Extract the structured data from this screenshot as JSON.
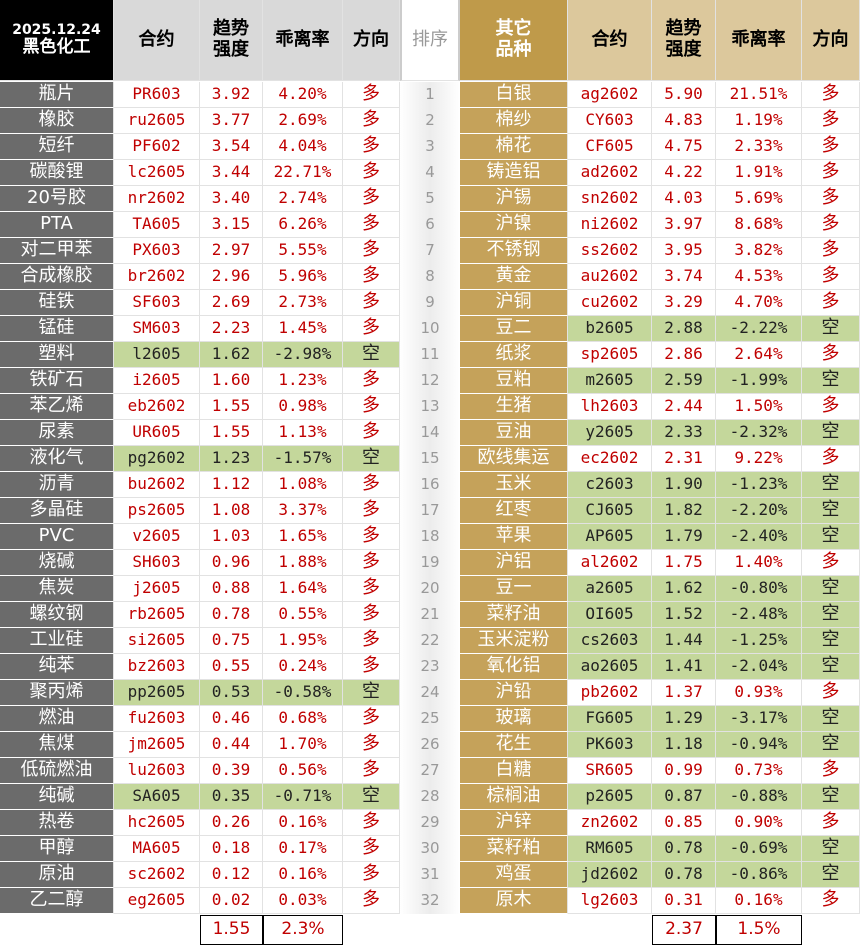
{
  "left": {
    "date": "2025.12.24",
    "title": "黑色化工",
    "columns": [
      [
        "合约"
      ],
      [
        "趋势",
        "强度"
      ],
      [
        "乖离率"
      ],
      [
        "方向"
      ]
    ],
    "rows": [
      [
        "瓶片",
        "PR603",
        "3.92",
        "4.20%",
        "多"
      ],
      [
        "橡胶",
        "ru2605",
        "3.77",
        "2.69%",
        "多"
      ],
      [
        "短纤",
        "PF602",
        "3.54",
        "4.04%",
        "多"
      ],
      [
        "碳酸锂",
        "lc2605",
        "3.44",
        "22.71%",
        "多"
      ],
      [
        "20号胶",
        "nr2602",
        "3.40",
        "2.74%",
        "多"
      ],
      [
        "PTA",
        "TA605",
        "3.15",
        "6.26%",
        "多"
      ],
      [
        "对二甲苯",
        "PX603",
        "2.97",
        "5.55%",
        "多"
      ],
      [
        "合成橡胶",
        "br2602",
        "2.96",
        "5.96%",
        "多"
      ],
      [
        "硅铁",
        "SF603",
        "2.69",
        "2.73%",
        "多"
      ],
      [
        "锰硅",
        "SM603",
        "2.23",
        "1.45%",
        "多"
      ],
      [
        "塑料",
        "l2605",
        "1.62",
        "-2.98%",
        "空"
      ],
      [
        "铁矿石",
        "i2605",
        "1.60",
        "1.23%",
        "多"
      ],
      [
        "苯乙烯",
        "eb2602",
        "1.55",
        "0.98%",
        "多"
      ],
      [
        "尿素",
        "UR605",
        "1.55",
        "1.13%",
        "多"
      ],
      [
        "液化气",
        "pg2602",
        "1.23",
        "-1.57%",
        "空"
      ],
      [
        "沥青",
        "bu2602",
        "1.12",
        "1.08%",
        "多"
      ],
      [
        "多晶硅",
        "ps2605",
        "1.08",
        "3.37%",
        "多"
      ],
      [
        "PVC",
        "v2605",
        "1.03",
        "1.65%",
        "多"
      ],
      [
        "烧碱",
        "SH603",
        "0.96",
        "1.88%",
        "多"
      ],
      [
        "焦炭",
        "j2605",
        "0.88",
        "1.64%",
        "多"
      ],
      [
        "螺纹钢",
        "rb2605",
        "0.78",
        "0.55%",
        "多"
      ],
      [
        "工业硅",
        "si2605",
        "0.75",
        "1.95%",
        "多"
      ],
      [
        "纯苯",
        "bz2603",
        "0.55",
        "0.24%",
        "多"
      ],
      [
        "聚丙烯",
        "pp2605",
        "0.53",
        "-0.58%",
        "空"
      ],
      [
        "燃油",
        "fu2603",
        "0.46",
        "0.68%",
        "多"
      ],
      [
        "焦煤",
        "jm2605",
        "0.44",
        "1.70%",
        "多"
      ],
      [
        "低硫燃油",
        "lu2603",
        "0.39",
        "0.56%",
        "多"
      ],
      [
        "纯碱",
        "SA605",
        "0.35",
        "-0.71%",
        "空"
      ],
      [
        "热卷",
        "hc2605",
        "0.26",
        "0.16%",
        "多"
      ],
      [
        "甲醇",
        "MA605",
        "0.18",
        "0.17%",
        "多"
      ],
      [
        "原油",
        "sc2602",
        "0.12",
        "0.16%",
        "多"
      ],
      [
        "乙二醇",
        "eg2605",
        "0.02",
        "0.03%",
        "多"
      ]
    ],
    "footer": [
      "1.55",
      "2.3%"
    ]
  },
  "rank": {
    "title": "排序",
    "values": [
      1,
      2,
      3,
      4,
      5,
      6,
      7,
      8,
      9,
      10,
      11,
      12,
      13,
      14,
      15,
      16,
      17,
      18,
      19,
      20,
      21,
      22,
      23,
      24,
      25,
      26,
      27,
      28,
      29,
      30,
      31,
      32
    ]
  },
  "right": {
    "title": [
      "其它",
      "品种"
    ],
    "columns": [
      [
        "合约"
      ],
      [
        "趋势",
        "强度"
      ],
      [
        "乖离率"
      ],
      [
        "方向"
      ]
    ],
    "rows": [
      [
        "白银",
        "ag2602",
        "5.90",
        "21.51%",
        "多"
      ],
      [
        "棉纱",
        "CY603",
        "4.83",
        "1.19%",
        "多"
      ],
      [
        "棉花",
        "CF605",
        "4.75",
        "2.33%",
        "多"
      ],
      [
        "铸造铝",
        "ad2602",
        "4.22",
        "1.91%",
        "多"
      ],
      [
        "沪锡",
        "sn2602",
        "4.03",
        "5.69%",
        "多"
      ],
      [
        "沪镍",
        "ni2602",
        "3.97",
        "8.68%",
        "多"
      ],
      [
        "不锈钢",
        "ss2602",
        "3.95",
        "3.82%",
        "多"
      ],
      [
        "黄金",
        "au2602",
        "3.74",
        "4.53%",
        "多"
      ],
      [
        "沪铜",
        "cu2602",
        "3.29",
        "4.70%",
        "多"
      ],
      [
        "豆二",
        "b2605",
        "2.88",
        "-2.22%",
        "空"
      ],
      [
        "纸浆",
        "sp2605",
        "2.86",
        "2.64%",
        "多"
      ],
      [
        "豆粕",
        "m2605",
        "2.59",
        "-1.99%",
        "空"
      ],
      [
        "生猪",
        "lh2603",
        "2.44",
        "1.50%",
        "多"
      ],
      [
        "豆油",
        "y2605",
        "2.33",
        "-2.32%",
        "空"
      ],
      [
        "欧线集运",
        "ec2602",
        "2.31",
        "9.22%",
        "多"
      ],
      [
        "玉米",
        "c2603",
        "1.90",
        "-1.23%",
        "空"
      ],
      [
        "红枣",
        "CJ605",
        "1.82",
        "-2.20%",
        "空"
      ],
      [
        "苹果",
        "AP605",
        "1.79",
        "-2.40%",
        "空"
      ],
      [
        "沪铝",
        "al2602",
        "1.75",
        "1.40%",
        "多"
      ],
      [
        "豆一",
        "a2605",
        "1.62",
        "-0.80%",
        "空"
      ],
      [
        "菜籽油",
        "OI605",
        "1.52",
        "-2.48%",
        "空"
      ],
      [
        "玉米淀粉",
        "cs2603",
        "1.44",
        "-1.25%",
        "空"
      ],
      [
        "氧化铝",
        "ao2605",
        "1.41",
        "-2.04%",
        "空"
      ],
      [
        "沪铅",
        "pb2602",
        "1.37",
        "0.93%",
        "多"
      ],
      [
        "玻璃",
        "FG605",
        "1.29",
        "-3.17%",
        "空"
      ],
      [
        "花生",
        "PK603",
        "1.18",
        "-0.94%",
        "空"
      ],
      [
        "白糖",
        "SR605",
        "0.99",
        "0.73%",
        "多"
      ],
      [
        "棕榈油",
        "p2605",
        "0.87",
        "-0.88%",
        "空"
      ],
      [
        "沪锌",
        "zn2602",
        "0.85",
        "0.90%",
        "多"
      ],
      [
        "菜籽粕",
        "RM605",
        "0.78",
        "-0.69%",
        "空"
      ],
      [
        "鸡蛋",
        "jd2602",
        "0.78",
        "-0.86%",
        "空"
      ],
      [
        "原木",
        "lg2603",
        "0.31",
        "0.16%",
        "多"
      ]
    ],
    "footer": [
      "2.37",
      "1.5%"
    ]
  }
}
